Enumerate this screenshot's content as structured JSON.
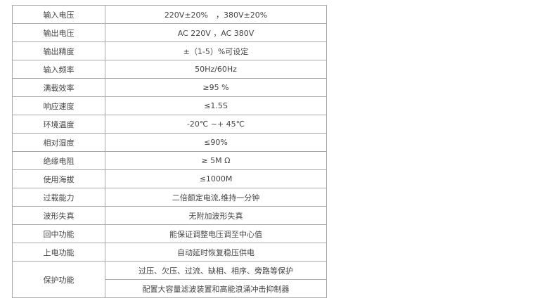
{
  "rows": [
    [
      "输入电压",
      "220V±20%　，380V±20%"
    ],
    [
      "输出电压",
      "AC 220V ，AC 380V"
    ],
    [
      "输出精度",
      "±（1-5）%可设定"
    ],
    [
      "输入频率",
      "50Hz/60Hz"
    ],
    [
      "满载效率",
      "≥95 %"
    ],
    [
      "响应速度",
      "≤1.5S"
    ],
    [
      "环境温度",
      "-20℃ ~+ 45℃"
    ],
    [
      "相对湿度",
      "≤90%"
    ],
    [
      "绝缘电阻",
      "≥ 5M Ω"
    ],
    [
      "使用海拔",
      "≤1000M"
    ],
    [
      "过载能力",
      "二倍额定电流,维持一分钟"
    ],
    [
      "波形失真",
      "无附加波形失真"
    ],
    [
      "回中功能",
      "能保证调整电压调至中心值"
    ],
    [
      "上电功能",
      "自动延时恢复稳压供电"
    ]
  ],
  "protection": {
    "label": "保护功能",
    "values": [
      "过压、欠压、过流、缺相、相序、旁路等保护",
      "配置大容量滤波装置和高能浪涌冲击抑制器"
    ]
  }
}
